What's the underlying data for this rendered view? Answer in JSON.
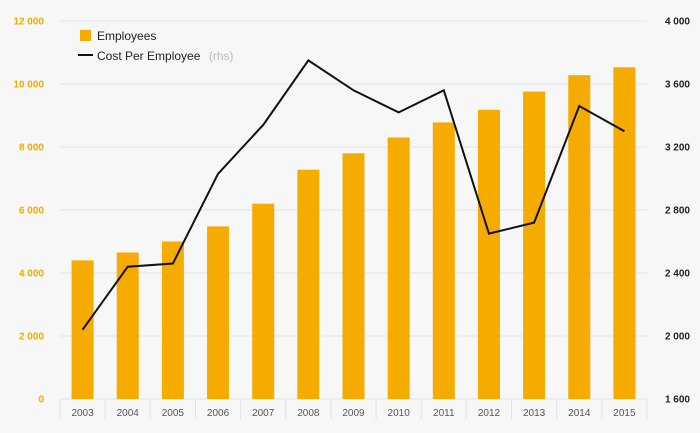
{
  "chart_data": {
    "type": "bar",
    "categories": [
      "2003",
      "2004",
      "2005",
      "2006",
      "2007",
      "2008",
      "2009",
      "2010",
      "2011",
      "2012",
      "2013",
      "2014",
      "2015"
    ],
    "series": [
      {
        "name": "Employees",
        "type": "bar",
        "axis": "left",
        "color": "#f5ab00",
        "values": [
          4400,
          4650,
          5000,
          5480,
          6200,
          7280,
          7800,
          8300,
          8780,
          9180,
          9760,
          10280,
          10530
        ]
      },
      {
        "name": "Cost Per Employee",
        "type": "line",
        "axis": "right",
        "color": "#111111",
        "values": [
          2040,
          2440,
          2460,
          3030,
          3340,
          3750,
          3560,
          3420,
          3560,
          2650,
          2720,
          3460,
          3300
        ]
      }
    ],
    "y_left": {
      "ylim": [
        0,
        12000
      ],
      "ticks": [
        0,
        2000,
        4000,
        6000,
        8000,
        10000,
        12000
      ],
      "tick_labels": [
        "0",
        "2 000",
        "4 000",
        "6 000",
        "8 000",
        "10 000",
        "12 000"
      ]
    },
    "y_right": {
      "ylim": [
        1600,
        4000
      ],
      "ticks": [
        1600,
        2000,
        2400,
        2800,
        3200,
        3600,
        4000
      ],
      "tick_labels": [
        "1 600",
        "2 000",
        "2 400",
        "2 800",
        "3 200",
        "3 600",
        "4 000"
      ]
    },
    "grid": true,
    "legend": {
      "placement": "top-left",
      "items": [
        {
          "label": "Employees",
          "suffix": ""
        },
        {
          "label": "Cost Per Employee",
          "suffix": "(rhs)"
        }
      ]
    }
  }
}
